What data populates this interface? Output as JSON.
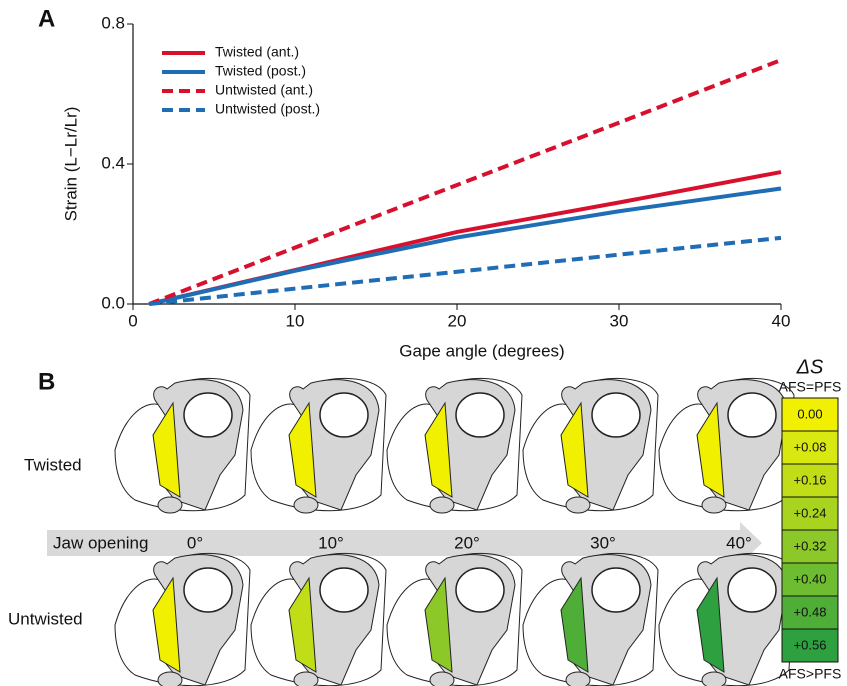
{
  "chart_data": {
    "type": "line",
    "panel_label": "A",
    "xlabel": "Gape angle (degrees)",
    "ylabel": "Strain (L−Lr/Lr)",
    "x": [
      1,
      10,
      20,
      30,
      40
    ],
    "series": [
      {
        "name": "Twisted (ant.)",
        "color": "#d7102e",
        "linestyle": "solid",
        "values": [
          0,
          0.097,
          0.206,
          0.29,
          0.377
        ]
      },
      {
        "name": "Twisted (post.)",
        "color": "#1f6db5",
        "linestyle": "solid",
        "values": [
          0,
          0.095,
          0.19,
          0.265,
          0.33
        ]
      },
      {
        "name": "Untwisted (ant.)",
        "color": "#d7102e",
        "linestyle": "dashed",
        "values": [
          0,
          0.161,
          0.34,
          0.518,
          0.697
        ]
      },
      {
        "name": "Untwisted (post.)",
        "color": "#1f6db5",
        "linestyle": "dashed",
        "values": [
          0,
          0.044,
          0.092,
          0.141,
          0.189
        ]
      }
    ],
    "xlim": [
      0,
      40
    ],
    "xticks": [
      0,
      10,
      20,
      30,
      40
    ],
    "ylim": [
      0,
      0.8
    ],
    "yticks": [
      {
        "value": 0,
        "label": "0.0"
      },
      0.4,
      0.8
    ],
    "grid": false,
    "legend": "upper left"
  },
  "panel_b": {
    "panel_label": "B",
    "rows": [
      "Twisted",
      "Untwisted"
    ],
    "arrow_label": "Jaw opening",
    "angles": [
      "0°",
      "10°",
      "20°",
      "30°",
      "40°"
    ],
    "scale_title": "ΔS",
    "scale_top": "AFS=PFS",
    "scale_bottom": "AFS>PFS",
    "scale_steps": [
      "0.00",
      "+0.08",
      "+0.16",
      "+0.24",
      "+0.32",
      "+0.40",
      "+0.48",
      "+0.56"
    ]
  }
}
